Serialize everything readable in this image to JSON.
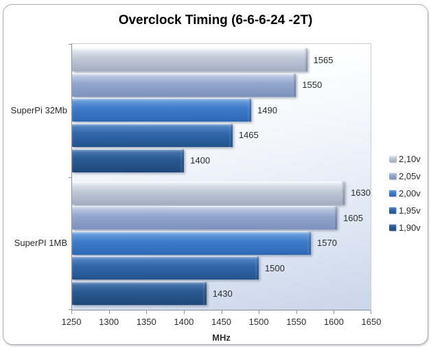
{
  "title": "Overclock Timing (6-6-6-24 -2T)",
  "chart_data": {
    "type": "bar",
    "orientation": "horizontal",
    "title": "Overclock Timing (6-6-6-24 -2T)",
    "xlabel": "MHz",
    "ylabel": "",
    "xlim": [
      1250,
      1650
    ],
    "x_ticks": [
      1250,
      1300,
      1350,
      1400,
      1450,
      1500,
      1550,
      1600,
      1650
    ],
    "grid": false,
    "data_labels": true,
    "legend_position": "right",
    "categories": [
      "SuperPi 32Mb",
      "SuperPI 1MB"
    ],
    "series": [
      {
        "name": "2,10v",
        "values": [
          1565,
          1630
        ],
        "colors": {
          "hi": "#eef1f6",
          "main": "#c0c9d8",
          "dark": "#a2adc2"
        }
      },
      {
        "name": "2,05v",
        "values": [
          1550,
          1605
        ],
        "colors": {
          "hi": "#c8d3ea",
          "main": "#93a6cc",
          "dark": "#7c91bd"
        }
      },
      {
        "name": "2,00v",
        "values": [
          1490,
          1570
        ],
        "colors": {
          "hi": "#79a7e0",
          "main": "#3e7dcb",
          "dark": "#2c67b4"
        }
      },
      {
        "name": "1,95v",
        "values": [
          1465,
          1500
        ],
        "colors": {
          "hi": "#5d8ec9",
          "main": "#3067ab",
          "dark": "#24528c"
        }
      },
      {
        "name": "1,90v",
        "values": [
          1400,
          1430
        ],
        "colors": {
          "hi": "#527fb3",
          "main": "#2a5a94",
          "dark": "#1f4878"
        }
      }
    ]
  }
}
